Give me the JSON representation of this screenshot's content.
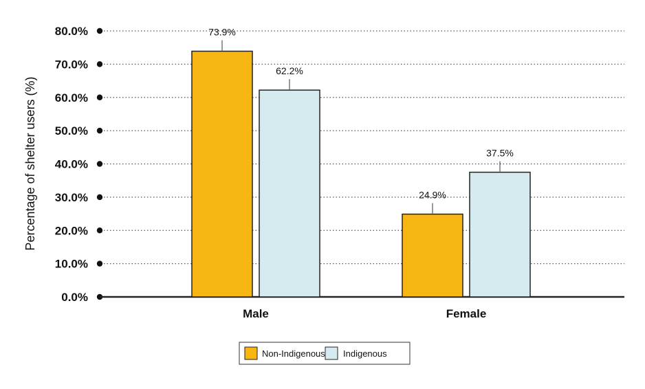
{
  "chart_data": {
    "type": "bar",
    "title": "",
    "xlabel": "",
    "ylabel": "Percentage of shelter users (%)",
    "ylim": [
      0,
      80
    ],
    "ytick_step": 10,
    "ytick_labels": [
      "0.0%",
      "10.0%",
      "20.0%",
      "30.0%",
      "40.0%",
      "50.0%",
      "60.0%",
      "70.0%",
      "80.0%"
    ],
    "grid": true,
    "legend_position": "bottom-center",
    "categories": [
      "Male",
      "Female"
    ],
    "series": [
      {
        "name": "Non-Indigenous",
        "color": "#f7b614",
        "values": [
          73.9,
          24.9
        ],
        "labels": [
          "73.9%",
          "24.9%"
        ]
      },
      {
        "name": "Indigenous",
        "color": "#d5ebef",
        "values": [
          62.2,
          37.5
        ],
        "labels": [
          "62.2%",
          "37.5%"
        ]
      }
    ]
  }
}
